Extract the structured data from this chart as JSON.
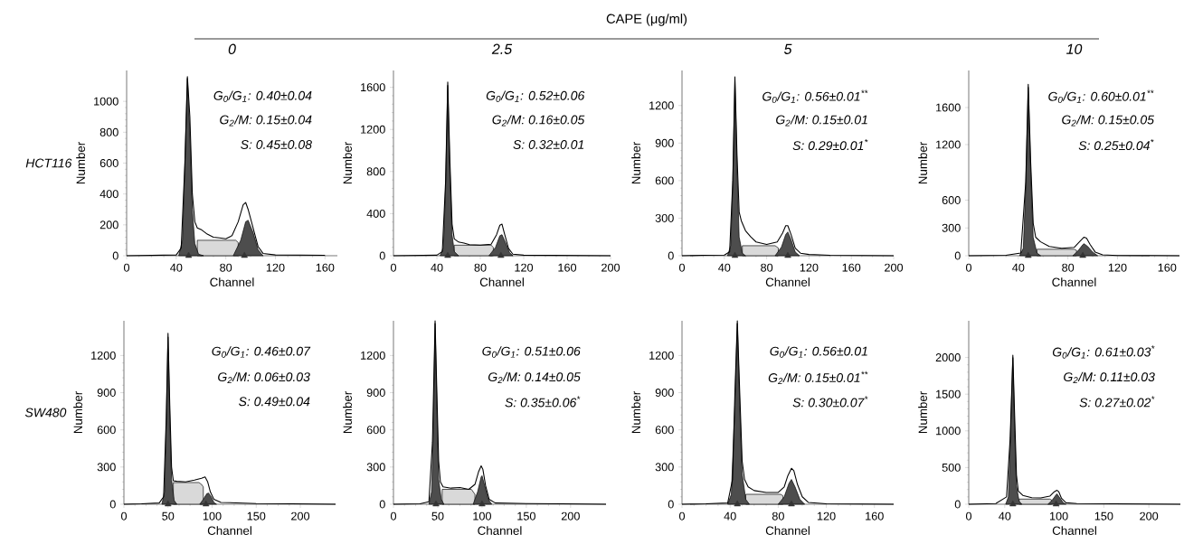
{
  "chart_data": [
    {
      "type": "area",
      "title": "0",
      "xlabel": "Channel",
      "ylabel": "Number",
      "xlim": [
        0,
        170
      ],
      "ylim": [
        0,
        1200
      ],
      "xticks": [
        0,
        40,
        80,
        120,
        160
      ],
      "yticks": [
        0,
        200,
        400,
        600,
        800,
        1000
      ],
      "annotations": [
        "G$_{0}$/G$_{1}$: 0.40±0.04",
        "G$_{2}$/M: 0.15±0.04",
        "S: 0.45±0.08",
        "HCT116",
        "CAPE (μg/ml)"
      ],
      "series": [
        {
          "type": "area",
          "color": "#4d4d4d",
          "x": [
            42,
            45,
            47,
            49,
            51,
            53,
            55,
            58,
            62
          ],
          "values": [
            0,
            100,
            600,
            1150,
            800,
            300,
            80,
            10,
            0
          ]
        },
        {
          "type": "area",
          "color": "#d9d9d9",
          "x": [
            57,
            60,
            70,
            80,
            88,
            90
          ],
          "values": [
            100,
            100,
            100,
            100,
            100,
            85
          ]
        },
        {
          "type": "area",
          "color": "#4d4d4d",
          "x": [
            86,
            92,
            96,
            98,
            102,
            106,
            110
          ],
          "values": [
            0,
            100,
            220,
            230,
            150,
            40,
            0
          ]
        },
        {
          "type": "line",
          "color": "#000000",
          "x": [
            0,
            40,
            44,
            47,
            49,
            51,
            53,
            55,
            57,
            60,
            65,
            70,
            75,
            80,
            85,
            90,
            94,
            96,
            98,
            102,
            106,
            110,
            120,
            160
          ],
          "values": [
            0,
            5,
            50,
            600,
            1160,
            900,
            400,
            220,
            180,
            170,
            140,
            120,
            115,
            110,
            130,
            220,
            330,
            345,
            300,
            180,
            60,
            15,
            5,
            3
          ]
        },
        {
          "type": "scatter",
          "marker": "triangle",
          "color": "#333333",
          "x": [
            50,
            95
          ],
          "values": [
            0,
            0
          ]
        }
      ]
    },
    {
      "type": "area",
      "title": "2.5",
      "xlabel": "Channel",
      "ylabel": "Number",
      "xlim": [
        0,
        200
      ],
      "ylim": [
        0,
        1760
      ],
      "xticks": [
        0,
        40,
        80,
        120,
        160,
        200
      ],
      "yticks": [
        0,
        400,
        800,
        1200,
        1600
      ],
      "annotations": [
        "G$_{0}$/G$_{1}$: 0.52±0.06",
        "G$_{2}$/M: 0.16±0.05",
        "S: 0.32±0.01"
      ],
      "series": [
        {
          "type": "area",
          "color": "#4d4d4d",
          "x": [
            43,
            46,
            48,
            50,
            52,
            54,
            56,
            60
          ],
          "values": [
            0,
            80,
            650,
            1620,
            800,
            200,
            40,
            0
          ]
        },
        {
          "type": "area",
          "color": "#d9d9d9",
          "x": [
            56,
            70,
            80,
            90,
            92
          ],
          "values": [
            100,
            100,
            100,
            100,
            80
          ]
        },
        {
          "type": "area",
          "color": "#4d4d4d",
          "x": [
            88,
            94,
            98,
            100,
            103,
            107,
            110
          ],
          "values": [
            0,
            80,
            190,
            200,
            130,
            30,
            0
          ]
        },
        {
          "type": "line",
          "color": "#000000",
          "x": [
            0,
            40,
            45,
            48,
            50,
            52,
            54,
            56,
            60,
            65,
            70,
            80,
            90,
            95,
            98,
            100,
            102,
            106,
            110,
            120,
            200
          ],
          "values": [
            0,
            5,
            40,
            700,
            1650,
            900,
            300,
            160,
            130,
            120,
            105,
            100,
            110,
            200,
            290,
            300,
            220,
            70,
            15,
            5,
            0
          ]
        },
        {
          "type": "scatter",
          "marker": "triangle",
          "color": "#333333",
          "x": [
            50,
            99
          ],
          "values": [
            0,
            0
          ]
        }
      ]
    },
    {
      "type": "area",
      "title": "5",
      "xlabel": "Channel",
      "ylabel": "Number",
      "xlim": [
        0,
        200
      ],
      "ylim": [
        0,
        1480
      ],
      "xticks": [
        0,
        40,
        80,
        120,
        160,
        200
      ],
      "yticks": [
        0,
        300,
        600,
        900,
        1200
      ],
      "annotations": [
        "G$_{0}$/G$_{1}$: 0.56±0.01$^{**}$",
        "G$_{2}$/M: 0.15±0.01",
        "S: 0.29±0.01$^{*}$"
      ],
      "series": [
        {
          "type": "area",
          "color": "#4d4d4d",
          "x": [
            43,
            46,
            48,
            50,
            52,
            54,
            57,
            60
          ],
          "values": [
            0,
            80,
            580,
            1400,
            700,
            150,
            20,
            0
          ]
        },
        {
          "type": "area",
          "color": "#d9d9d9",
          "x": [
            57,
            70,
            80,
            88,
            91
          ],
          "values": [
            80,
            80,
            80,
            80,
            62
          ]
        },
        {
          "type": "area",
          "color": "#4d4d4d",
          "x": [
            88,
            94,
            98,
            100,
            103,
            107,
            111
          ],
          "values": [
            0,
            70,
            170,
            190,
            130,
            30,
            0
          ]
        },
        {
          "type": "line",
          "color": "#000000",
          "x": [
            0,
            20,
            40,
            45,
            48,
            50,
            52,
            54,
            56,
            60,
            65,
            70,
            80,
            90,
            95,
            98,
            100,
            103,
            107,
            112,
            120,
            140,
            200
          ],
          "values": [
            0,
            3,
            5,
            30,
            600,
            1430,
            800,
            350,
            280,
            200,
            150,
            110,
            90,
            110,
            180,
            240,
            240,
            170,
            60,
            20,
            10,
            3,
            0
          ]
        },
        {
          "type": "scatter",
          "marker": "triangle",
          "color": "#333333",
          "x": [
            50,
            100
          ],
          "values": [
            0,
            0
          ]
        }
      ]
    },
    {
      "type": "area",
      "title": "10",
      "xlabel": "Channel",
      "ylabel": "Number",
      "xlim": [
        0,
        170
      ],
      "ylim": [
        0,
        2000
      ],
      "xticks": [
        0,
        40,
        80,
        120,
        160
      ],
      "yticks": [
        0,
        300,
        600,
        1200,
        1600
      ],
      "annotations": [
        "G$_{0}$/G$_{1}$: 0.60±0.01$^{**}$",
        "G$_{2}$/M: 0.15±0.05",
        "S: 0.25±0.04$^{*}$"
      ],
      "series": [
        {
          "type": "area",
          "color": "#4d4d4d",
          "x": [
            41,
            44,
            46,
            48,
            50,
            52,
            55,
            58
          ],
          "values": [
            0,
            80,
            750,
            1820,
            900,
            200,
            30,
            0
          ]
        },
        {
          "type": "area",
          "color": "#d9d9d9",
          "x": [
            55,
            70,
            80,
            85,
            87
          ],
          "values": [
            70,
            70,
            70,
            70,
            58
          ]
        },
        {
          "type": "area",
          "color": "#4d4d4d",
          "x": [
            84,
            88,
            92,
            93,
            96,
            100,
            104
          ],
          "values": [
            0,
            50,
            120,
            130,
            100,
            40,
            0
          ]
        },
        {
          "type": "line",
          "color": "#000000",
          "x": [
            0,
            30,
            42,
            46,
            48,
            50,
            52,
            54,
            58,
            65,
            75,
            85,
            90,
            93,
            95,
            98,
            102,
            108,
            120,
            170
          ],
          "values": [
            0,
            5,
            30,
            800,
            1850,
            1000,
            350,
            200,
            150,
            100,
            80,
            90,
            160,
            200,
            190,
            120,
            40,
            10,
            3,
            0
          ]
        },
        {
          "type": "scatter",
          "marker": "triangle",
          "color": "#333333",
          "x": [
            48,
            92
          ],
          "values": [
            0,
            0
          ]
        }
      ]
    },
    {
      "type": "area",
      "xlabel": "Channel",
      "ylabel": "Number",
      "xlim": [
        0,
        240
      ],
      "ylim": [
        0,
        1480
      ],
      "xticks": [
        0,
        50,
        100,
        150,
        200
      ],
      "yticks": [
        0,
        300,
        600,
        900,
        1200
      ],
      "annotations": [
        "G$_{0}$/G$_{1}$: 0.46±0.07",
        "G$_{2}$/M: 0.06±0.03",
        "S: 0.49±0.04",
        "SW480"
      ],
      "series": [
        {
          "type": "area",
          "color": "#4d4d4d",
          "x": [
            43,
            46,
            48,
            50,
            52,
            54,
            57,
            60
          ],
          "values": [
            0,
            100,
            650,
            1350,
            700,
            200,
            30,
            0
          ]
        },
        {
          "type": "area",
          "color": "#d9d9d9",
          "x": [
            56,
            70,
            85,
            88,
            90
          ],
          "values": [
            175,
            175,
            175,
            160,
            140
          ]
        },
        {
          "type": "area",
          "color": "#4d4d4d",
          "x": [
            86,
            90,
            94,
            96,
            99,
            102,
            105
          ],
          "values": [
            0,
            40,
            85,
            90,
            60,
            15,
            0
          ]
        },
        {
          "type": "line",
          "color": "#000000",
          "x": [
            0,
            20,
            40,
            45,
            48,
            50,
            52,
            54,
            56,
            60,
            70,
            80,
            88,
            92,
            95,
            98,
            102,
            110,
            150,
            190,
            240
          ],
          "values": [
            0,
            3,
            10,
            60,
            700,
            1380,
            800,
            300,
            190,
            185,
            180,
            195,
            210,
            220,
            180,
            100,
            40,
            15,
            5,
            3,
            0
          ]
        },
        {
          "type": "scatter",
          "marker": "triangle",
          "color": "#333333",
          "x": [
            50,
            93
          ],
          "values": [
            0,
            0
          ]
        }
      ]
    },
    {
      "type": "area",
      "xlabel": "Channel",
      "ylabel": "Number",
      "xlim": [
        0,
        240
      ],
      "ylim": [
        0,
        1480
      ],
      "xticks": [
        0,
        50,
        100,
        150,
        200
      ],
      "yticks": [
        0,
        300,
        600,
        900,
        1200
      ],
      "annotations": [
        "G$_{0}$/G$_{1}$: 0.51±0.06",
        "G$_{2}$/M: 0.14±0.05",
        "S: 0.35±0.06$^{*}$"
      ],
      "series": [
        {
          "type": "area",
          "color": "#4d4d4d",
          "x": [
            40,
            43,
            45,
            47,
            49,
            51,
            54,
            57
          ],
          "values": [
            0,
            100,
            600,
            1460,
            800,
            200,
            40,
            0
          ]
        },
        {
          "type": "area",
          "color": "#d9d9d9",
          "x": [
            55,
            70,
            88,
            92
          ],
          "values": [
            120,
            120,
            120,
            80
          ]
        },
        {
          "type": "area",
          "color": "#4d4d4d",
          "x": [
            90,
            95,
            99,
            100,
            103,
            107,
            111
          ],
          "values": [
            0,
            100,
            220,
            230,
            150,
            40,
            0
          ]
        },
        {
          "type": "line",
          "color": "#000000",
          "x": [
            0,
            30,
            40,
            44,
            47,
            49,
            51,
            53,
            56,
            65,
            75,
            85,
            92,
            96,
            99,
            101,
            104,
            108,
            115,
            150,
            190,
            240
          ],
          "values": [
            0,
            3,
            20,
            500,
            1480,
            900,
            350,
            180,
            140,
            130,
            135,
            120,
            160,
            260,
            310,
            280,
            150,
            40,
            10,
            5,
            3,
            0
          ]
        },
        {
          "type": "scatter",
          "marker": "triangle",
          "color": "#333333",
          "x": [
            48,
            100
          ],
          "values": [
            0,
            0
          ]
        }
      ]
    },
    {
      "type": "area",
      "xlabel": "Channel",
      "ylabel": "Number",
      "xlim": [
        0,
        176
      ],
      "ylim": [
        0,
        1480
      ],
      "xticks": [
        0,
        40,
        80,
        120,
        160
      ],
      "yticks": [
        0,
        300,
        600,
        900,
        1200
      ],
      "annotations": [
        "G$_{0}$/G$_{1}$: 0.56±0.01",
        "G$_{2}$/M: 0.15±0.01$^{**}$",
        "S: 0.30±0.07$^{*}$"
      ],
      "series": [
        {
          "type": "area",
          "color": "#4d4d4d",
          "x": [
            38,
            41,
            44,
            46,
            48,
            50,
            53,
            56
          ],
          "values": [
            0,
            80,
            800,
            1460,
            800,
            250,
            40,
            0
          ]
        },
        {
          "type": "area",
          "color": "#d9d9d9",
          "x": [
            53,
            65,
            82,
            84
          ],
          "values": [
            80,
            80,
            80,
            68
          ]
        },
        {
          "type": "area",
          "color": "#4d4d4d",
          "x": [
            80,
            85,
            89,
            91,
            94,
            98,
            102
          ],
          "values": [
            0,
            60,
            170,
            200,
            140,
            40,
            0
          ]
        },
        {
          "type": "line",
          "color": "#000000",
          "x": [
            0,
            20,
            38,
            42,
            44,
            46,
            48,
            50,
            52,
            55,
            60,
            70,
            80,
            85,
            88,
            91,
            93,
            96,
            100,
            105,
            120,
            176
          ],
          "values": [
            0,
            3,
            10,
            200,
            900,
            1480,
            900,
            350,
            200,
            140,
            110,
            95,
            95,
            140,
            230,
            290,
            270,
            160,
            60,
            15,
            3,
            0
          ]
        },
        {
          "type": "scatter",
          "marker": "triangle",
          "color": "#333333",
          "x": [
            46,
            91
          ],
          "values": [
            0,
            0
          ]
        }
      ]
    },
    {
      "type": "area",
      "xlabel": "Channel",
      "ylabel": "Number",
      "xlim": [
        0,
        235
      ],
      "ylim": [
        0,
        2500
      ],
      "xticks": [
        0,
        40,
        100,
        150,
        200
      ],
      "yticks": [
        0,
        500,
        1000,
        1500,
        2000
      ],
      "annotations": [
        "G$_{0}$/G$_{1}$: 0.61±0.03$^{*}$",
        "G$_{2}$/M: 0.11±0.03",
        "S: 0.27±0.02$^{*}$"
      ],
      "series": [
        {
          "type": "area",
          "color": "#4d4d4d",
          "x": [
            41,
            44,
            46,
            49,
            51,
            53,
            56,
            59
          ],
          "values": [
            0,
            100,
            800,
            2000,
            1000,
            250,
            40,
            0
          ]
        },
        {
          "type": "area",
          "color": "#d9d9d9",
          "x": [
            56,
            70,
            90,
            92
          ],
          "values": [
            70,
            70,
            70,
            58
          ]
        },
        {
          "type": "area",
          "color": "#4d4d4d",
          "x": [
            88,
            93,
            97,
            98,
            101,
            105,
            108
          ],
          "values": [
            0,
            60,
            130,
            140,
            90,
            20,
            0
          ]
        },
        {
          "type": "line",
          "color": "#000000",
          "x": [
            0,
            30,
            42,
            46,
            49,
            51,
            53,
            55,
            60,
            70,
            80,
            90,
            95,
            98,
            100,
            103,
            108,
            120,
            235
          ],
          "values": [
            0,
            10,
            100,
            900,
            2030,
            1200,
            400,
            180,
            120,
            90,
            85,
            110,
            170,
            190,
            170,
            80,
            20,
            10,
            0
          ]
        },
        {
          "type": "scatter",
          "marker": "triangle",
          "color": "#333333",
          "x": [
            49,
            97
          ],
          "values": [
            0,
            0
          ]
        }
      ]
    }
  ]
}
